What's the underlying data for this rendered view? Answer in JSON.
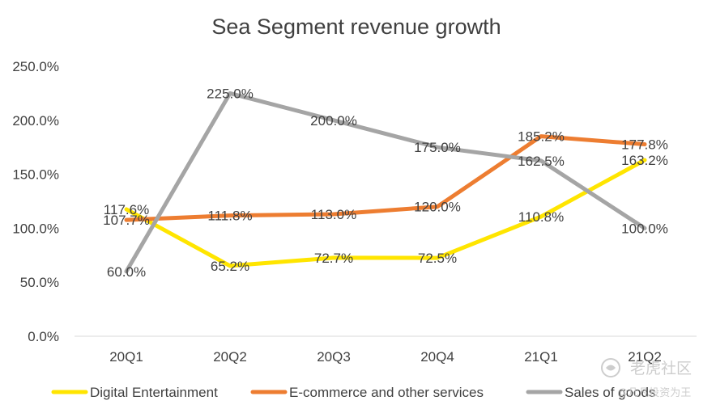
{
  "chart_data": {
    "type": "line",
    "title": "Sea Segment revenue growth",
    "categories": [
      "20Q1",
      "20Q2",
      "20Q3",
      "20Q4",
      "21Q1",
      "21Q2"
    ],
    "ylim": [
      0,
      250
    ],
    "yticks": [
      "0.0%",
      "50.0%",
      "100.0%",
      "150.0%",
      "200.0%",
      "250.0%"
    ],
    "grid": false,
    "legend_position": "bottom",
    "series": [
      {
        "name": "Digital Entertainment",
        "color": "#FFE500",
        "values": [
          117.6,
          65.2,
          72.7,
          72.5,
          110.8,
          163.2
        ],
        "labels": [
          "117.6%",
          "65.2%",
          "72.7%",
          "72.5%",
          "110.8%",
          "163.2%"
        ]
      },
      {
        "name": "E-commerce and other services",
        "color": "#ED7D31",
        "values": [
          107.7,
          111.8,
          113.0,
          120.0,
          185.2,
          177.8
        ],
        "labels": [
          "107.7%",
          "111.8%",
          "113.0%",
          "120.0%",
          "185.2%",
          "177.8%"
        ]
      },
      {
        "name": "Sales of goods",
        "color": "#A5A5A5",
        "values": [
          60.0,
          225.0,
          200.0,
          175.0,
          162.5,
          100.0
        ],
        "labels": [
          "60.0%",
          "225.0%",
          "200.0%",
          "175.0%",
          "162.5%",
          "100.0%"
        ]
      }
    ]
  },
  "watermark": {
    "logo_text": "老虎社区",
    "sub_text": "@凡凡投资为王",
    "icon": "tiger-logo-icon"
  }
}
